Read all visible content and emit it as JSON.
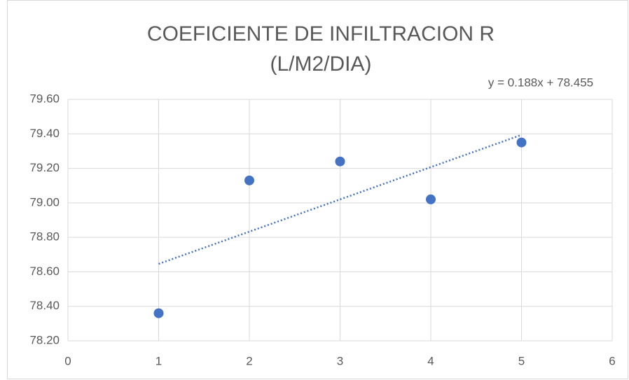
{
  "chart_data": {
    "type": "scatter",
    "title": [
      "COEFICIENTE  DE INFILTRACION  R",
      "(L/M2/DIA)"
    ],
    "x": [
      1,
      2,
      3,
      4,
      5
    ],
    "series": [
      {
        "color": "#4472c4",
        "values": [
          78.36,
          79.13,
          79.24,
          79.02,
          79.35
        ]
      }
    ],
    "trendline": {
      "type": "linear",
      "label": "y = 0.188x + 78.455",
      "color": "#4472c4"
    },
    "xlim": [
      0,
      6
    ],
    "xticks": [
      0,
      1,
      2,
      3,
      4,
      5,
      6
    ],
    "ylim": [
      78.2,
      79.6
    ],
    "yticks": [
      {
        "value": 78.2,
        "label": "78.20"
      },
      {
        "value": 78.4,
        "label": "78.40"
      },
      {
        "value": 78.6,
        "label": "78.60"
      },
      {
        "value": 78.8,
        "label": "78.80"
      },
      {
        "value": 79.0,
        "label": "79.00"
      },
      {
        "value": 79.2,
        "label": "79.20"
      },
      {
        "value": 79.4,
        "label": "79.40"
      },
      {
        "value": 79.6,
        "label": "79.60"
      }
    ],
    "grid": true
  }
}
